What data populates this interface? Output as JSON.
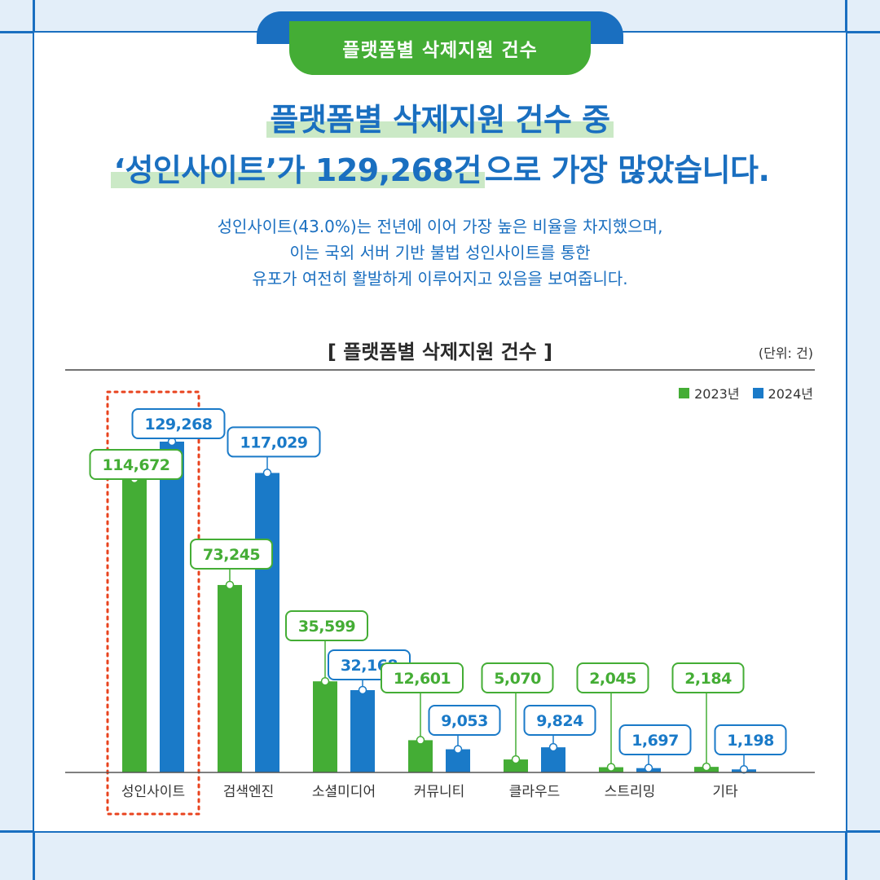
{
  "tab_label": "플랫폼별 삭제지원 건수",
  "headline": {
    "line1": "플랫폼별 삭제지원 건수 중",
    "line2_highlight": "‘성인사이트’가 129,268건",
    "line2_rest": "으로 가장 많았습니다."
  },
  "description": [
    "성인사이트(43.0%)는 전년에 이어 가장 높은 비율을 차지했으며,",
    "이는 국외 서버 기반 불법 성인사이트를 통한",
    "유포가 여전히 활발하게 이루어지고 있음을 보여줍니다."
  ],
  "colors": {
    "green": "#44ad35",
    "blue": "#1a7ac8",
    "highlight": "#e8431e"
  },
  "chart_data": {
    "type": "bar",
    "title": "[ 플랫폼별 삭제지원 건수 ]",
    "unit": "(단위: 건)",
    "categories": [
      "성인사이트",
      "검색엔진",
      "소셜미디어",
      "커뮤니티",
      "클라우드",
      "스트리밍",
      "기타"
    ],
    "series": [
      {
        "name": "2023년",
        "values": [
          114672,
          73245,
          35599,
          12601,
          5070,
          2045,
          2184
        ],
        "labels": [
          "114,672",
          "73,245",
          "35,599",
          "12,601",
          "5,070",
          "2,045",
          "2,184"
        ]
      },
      {
        "name": "2024년",
        "values": [
          129268,
          117029,
          32168,
          9053,
          9824,
          1697,
          1198
        ],
        "labels": [
          "129,268",
          "117,029",
          "32,168",
          "9,053",
          "9,824",
          "1,697",
          "1,198"
        ]
      }
    ],
    "ylim": [
      0,
      142000
    ],
    "grid": false,
    "legend": "top-right",
    "highlighted_category": "성인사이트"
  }
}
